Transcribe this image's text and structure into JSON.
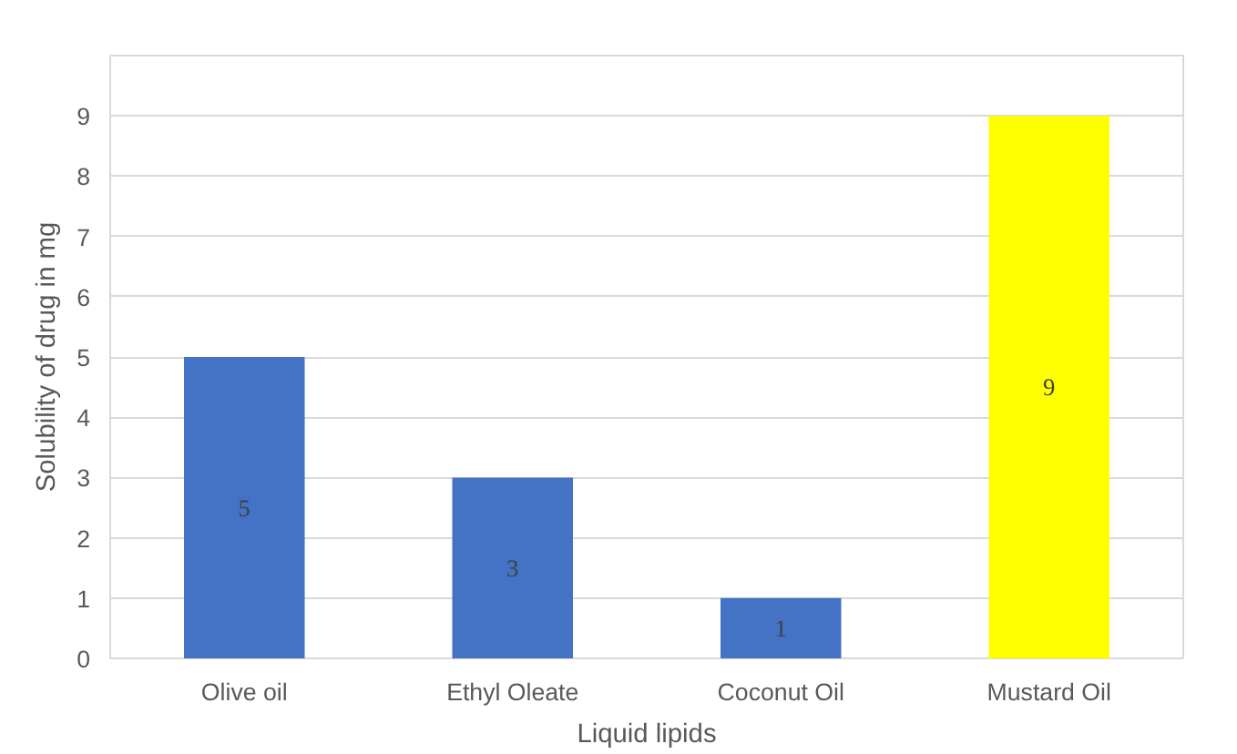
{
  "chart_data": {
    "type": "bar",
    "xlabel": "Liquid lipids",
    "ylabel": "Solubility of drug in mg",
    "categories": [
      "Olive oil",
      "Ethyl Oleate",
      "Coconut Oil",
      "Mustard Oil"
    ],
    "values": [
      5,
      3,
      1,
      9
    ],
    "colors": [
      "#4472c4",
      "#4472c4",
      "#4472c4",
      "#ffff00"
    ],
    "ylim": [
      0,
      10
    ],
    "yticks": [
      0,
      1,
      2,
      3,
      4,
      5,
      6,
      7,
      8,
      9,
      {
        "value": 10,
        "label": null
      }
    ],
    "grid": "y",
    "data_labels": true
  }
}
